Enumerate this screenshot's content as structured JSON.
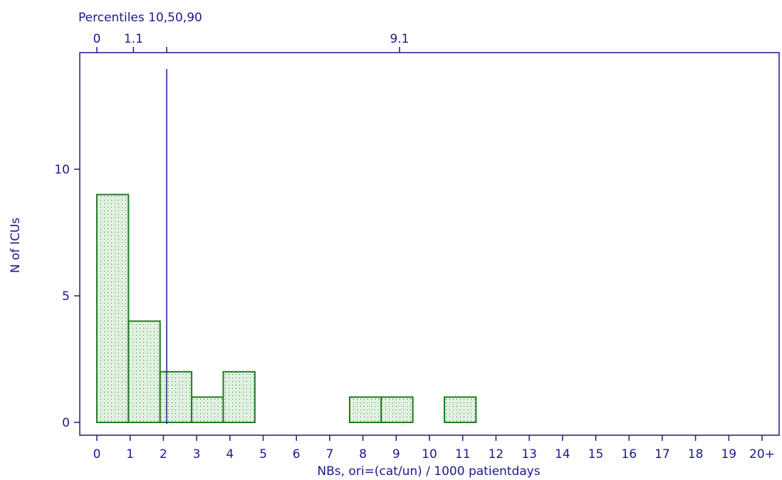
{
  "chart_data": {
    "type": "bar",
    "top_axis": {
      "title": "Percentiles 10,50,90",
      "ticks": [
        {
          "value": 0,
          "label": "0"
        },
        {
          "value": 1.1,
          "label": "1.1"
        },
        {
          "value": 2.1,
          "label": ""
        },
        {
          "value": 9.1,
          "label": "9.1"
        }
      ]
    },
    "median_value": 2.1,
    "xlabel": "NBs, ori=(cat/un) / 1000 patientdays",
    "ylabel": "N of ICUs",
    "xlim": [
      -0.5,
      20.5
    ],
    "ylim": [
      0,
      14
    ],
    "x_ticks": [
      "0",
      "1",
      "2",
      "3",
      "4",
      "5",
      "6",
      "7",
      "8",
      "9",
      "10",
      "11",
      "12",
      "13",
      "14",
      "15",
      "16",
      "17",
      "18",
      "19",
      "20+"
    ],
    "y_ticks": [
      0,
      5,
      10
    ],
    "bins": [
      {
        "start": 0.0,
        "end": 0.95,
        "count": 9
      },
      {
        "start": 0.95,
        "end": 1.9,
        "count": 4
      },
      {
        "start": 1.9,
        "end": 2.85,
        "count": 2
      },
      {
        "start": 2.85,
        "end": 3.8,
        "count": 1
      },
      {
        "start": 3.8,
        "end": 4.75,
        "count": 2
      },
      {
        "start": 7.6,
        "end": 8.55,
        "count": 1
      },
      {
        "start": 8.55,
        "end": 9.5,
        "count": 1
      },
      {
        "start": 10.45,
        "end": 11.4,
        "count": 1
      }
    ],
    "colors": {
      "axis": "#1a1a8c",
      "bar_stroke": "#1f7a1f",
      "bar_fill": "#e8f5e8",
      "dots": "#2f8f2f"
    }
  }
}
